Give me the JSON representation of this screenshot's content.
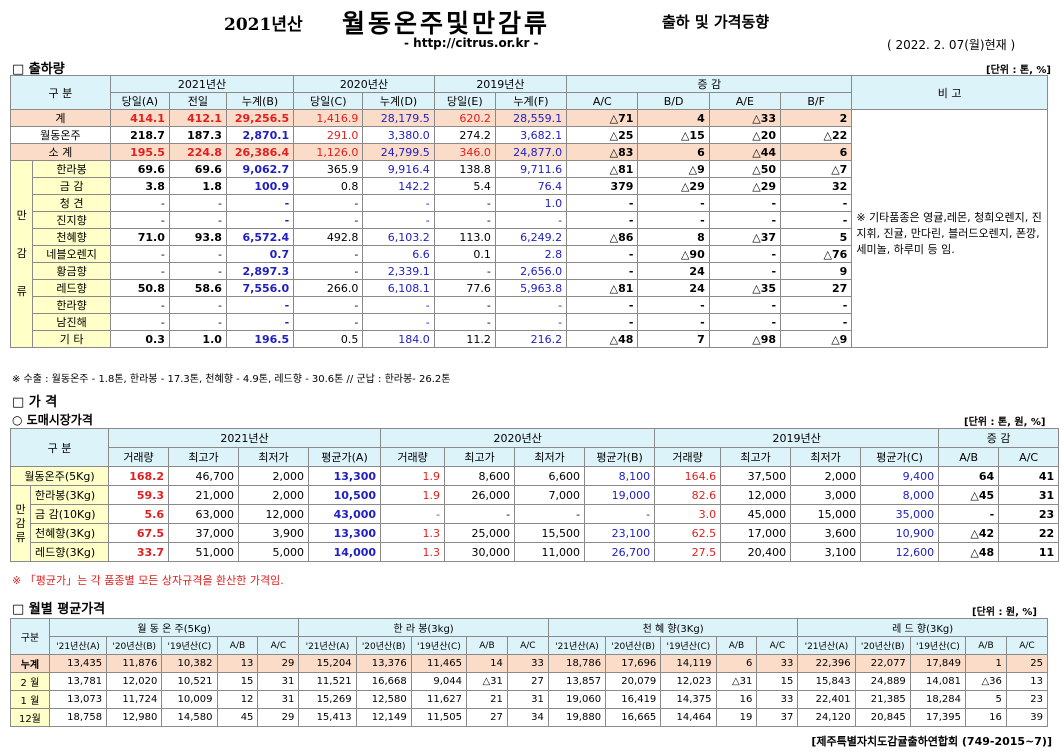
{
  "header": {
    "year": "2021년산",
    "title": "월동온주및만감류",
    "subtitle": "출하 및 가격동향",
    "url": "- http://citrus.or.kr -",
    "date": "( 2022. 2. 07(월)현재 )"
  },
  "shipment": {
    "section_title": "□ 출하량",
    "unit": "[단위 : 톤, %]",
    "header_gubun": "구 분",
    "years": [
      "2021년산",
      "2020년산",
      "2019년산"
    ],
    "change_label": "증 감",
    "remark_label": "비 고",
    "cols": [
      "당일(A)",
      "전일",
      "누계(B)",
      "당일(C)",
      "누계(D)",
      "당일(E)",
      "누계(F)",
      "A/C",
      "B/D",
      "A/E",
      "B/F"
    ],
    "category_label": "만감류",
    "rows": [
      {
        "name": "계",
        "v": [
          "414.1",
          "412.1",
          "29,256.5",
          "1,416.9",
          "28,179.5",
          "620.2",
          "28,559.1",
          "△71",
          "4",
          "△33",
          "2"
        ]
      },
      {
        "name": "월동온주",
        "v": [
          "218.7",
          "187.3",
          "2,870.1",
          "291.0",
          "3,380.0",
          "274.2",
          "3,682.1",
          "△25",
          "△15",
          "△20",
          "△22"
        ]
      },
      {
        "name": "소 계",
        "v": [
          "195.5",
          "224.8",
          "26,386.4",
          "1,126.0",
          "24,799.5",
          "346.0",
          "24,877.0",
          "△83",
          "6",
          "△44",
          "6"
        ]
      },
      {
        "name": "한라봉",
        "v": [
          "69.6",
          "69.6",
          "9,062.7",
          "365.9",
          "9,916.4",
          "138.8",
          "9,711.6",
          "△81",
          "△9",
          "△50",
          "△7"
        ]
      },
      {
        "name": "금 감",
        "v": [
          "3.8",
          "1.8",
          "100.9",
          "0.8",
          "142.2",
          "5.4",
          "76.4",
          "379",
          "△29",
          "△29",
          "32"
        ]
      },
      {
        "name": "청 견",
        "v": [
          "-",
          "-",
          "-",
          "-",
          "-",
          "-",
          "1.0",
          "-",
          "-",
          "-",
          "-"
        ]
      },
      {
        "name": "진지향",
        "v": [
          "-",
          "-",
          "-",
          "-",
          "-",
          "-",
          "-",
          "-",
          "-",
          "-",
          "-"
        ]
      },
      {
        "name": "천혜향",
        "v": [
          "71.0",
          "93.8",
          "6,572.4",
          "492.8",
          "6,103.2",
          "113.0",
          "6,249.2",
          "△86",
          "8",
          "△37",
          "5"
        ]
      },
      {
        "name": "네블오렌지",
        "v": [
          "-",
          "-",
          "0.7",
          "-",
          "6.6",
          "0.1",
          "2.8",
          "-",
          "△90",
          "-",
          "△76"
        ]
      },
      {
        "name": "황금향",
        "v": [
          "-",
          "-",
          "2,897.3",
          "-",
          "2,339.1",
          "-",
          "2,656.0",
          "-",
          "24",
          "-",
          "9"
        ]
      },
      {
        "name": "레드향",
        "v": [
          "50.8",
          "58.6",
          "7,556.0",
          "266.0",
          "6,108.1",
          "77.6",
          "5,963.8",
          "△81",
          "24",
          "△35",
          "27"
        ]
      },
      {
        "name": "한라향",
        "v": [
          "-",
          "-",
          "-",
          "-",
          "-",
          "-",
          "-",
          "-",
          "-",
          "-",
          "-"
        ]
      },
      {
        "name": "남진해",
        "v": [
          "-",
          "-",
          "-",
          "-",
          "-",
          "-",
          "-",
          "-",
          "-",
          "-",
          "-"
        ]
      },
      {
        "name": "기 타",
        "v": [
          "0.3",
          "1.0",
          "196.5",
          "0.5",
          "184.0",
          "11.2",
          "216.2",
          "△48",
          "7",
          "△98",
          "△9"
        ]
      }
    ],
    "remark": "※ 기타품종은 영귤,레몬, 청희오렌지, 진지휘, 진귤, 만다린, 블러드오렌지, 폰깡,세미놀, 하루미 등 임.",
    "footnote": "※ 수출 : 월동온주 - 1.8톤, 한라봉 - 17.3톤, 천혜향 - 4.9톤, 레드향 - 30.6톤 // 군납 : 한라봉- 26.2톤"
  },
  "price": {
    "section_title": "□ 가 격",
    "sub_title": "○ 도매시장가격",
    "unit": "[단위 : 톤, 원, %]",
    "header_gubun": "구 분",
    "years": [
      "2021년산",
      "2020년산",
      "2019년산"
    ],
    "change_label": "증 감",
    "cols": [
      "거래량",
      "최고가",
      "최저가",
      "평균가(A)",
      "거래량",
      "최고가",
      "최저가",
      "평균가(B)",
      "거래량",
      "최고가",
      "최저가",
      "평균가(C)",
      "A/B",
      "A/C"
    ],
    "category_label": "만감류",
    "rows": [
      {
        "name": "월동온주(5Kg)",
        "v": [
          "168.2",
          "46,700",
          "2,000",
          "13,300",
          "1.9",
          "8,600",
          "6,600",
          "8,100",
          "164.6",
          "37,500",
          "2,000",
          "9,400",
          "64",
          "41"
        ]
      },
      {
        "name": "한라봉(3Kg)",
        "v": [
          "59.3",
          "21,000",
          "2,000",
          "10,500",
          "1.9",
          "26,000",
          "7,000",
          "19,000",
          "82.6",
          "12,000",
          "3,000",
          "8,000",
          "△45",
          "31"
        ]
      },
      {
        "name": "금 감(10Kg)",
        "v": [
          "5.6",
          "63,000",
          "12,000",
          "43,000",
          "-",
          "-",
          "-",
          "-",
          "3.0",
          "45,000",
          "15,000",
          "35,000",
          "-",
          "23"
        ]
      },
      {
        "name": "천혜향(3Kg)",
        "v": [
          "67.5",
          "37,000",
          "3,900",
          "13,300",
          "1.3",
          "25,000",
          "15,500",
          "23,100",
          "62.5",
          "17,000",
          "3,600",
          "10,900",
          "△42",
          "22"
        ]
      },
      {
        "name": "레드향(3Kg)",
        "v": [
          "33.7",
          "51,000",
          "5,000",
          "14,000",
          "1.3",
          "30,000",
          "11,000",
          "26,700",
          "27.5",
          "20,400",
          "3,100",
          "12,600",
          "△48",
          "11"
        ]
      }
    ],
    "footnote": "※ 「평균가」는 각 품종별 모든 상자규격을 환산한 가격임."
  },
  "monthly": {
    "section_title": "□ 월별 평균가격",
    "unit": "[단위 : 원, %]",
    "header_gubun": "구분",
    "groups": [
      "월 동 온 주(5Kg)",
      "한 라 봉(3kg)",
      "천 혜 향(3Kg)",
      "레 드 향(3Kg)"
    ],
    "cols": [
      "'21년산(A)",
      "'20년산(B)",
      "'19년산(C)",
      "A/B",
      "A/C"
    ],
    "rows": [
      {
        "name": "누계",
        "v": [
          "13,435",
          "11,876",
          "10,382",
          "13",
          "29",
          "15,204",
          "13,376",
          "11,465",
          "14",
          "33",
          "18,786",
          "17,696",
          "14,119",
          "6",
          "33",
          "22,396",
          "22,077",
          "17,849",
          "1",
          "25"
        ]
      },
      {
        "name": "2 월",
        "v": [
          "13,781",
          "12,020",
          "10,521",
          "15",
          "31",
          "11,521",
          "16,668",
          "9,044",
          "△31",
          "27",
          "13,857",
          "20,079",
          "12,023",
          "△31",
          "15",
          "15,843",
          "24,889",
          "14,081",
          "△36",
          "13"
        ]
      },
      {
        "name": "1 월",
        "v": [
          "13,073",
          "11,724",
          "10,009",
          "12",
          "31",
          "15,269",
          "12,580",
          "11,627",
          "21",
          "31",
          "19,060",
          "16,419",
          "14,375",
          "16",
          "33",
          "22,401",
          "21,385",
          "18,284",
          "5",
          "23"
        ]
      },
      {
        "name": "12월",
        "v": [
          "18,758",
          "12,980",
          "14,580",
          "45",
          "29",
          "15,413",
          "12,149",
          "11,505",
          "27",
          "34",
          "19,880",
          "16,665",
          "14,464",
          "19",
          "37",
          "24,120",
          "20,845",
          "17,395",
          "16",
          "39"
        ]
      }
    ],
    "footer": "[제주특별자치도감귤출하연합회 (749-2015~7)]"
  }
}
